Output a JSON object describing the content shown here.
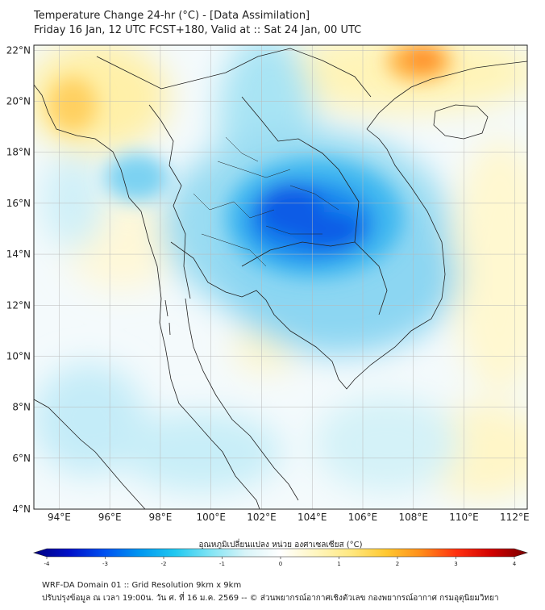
{
  "header": {
    "title_line1": "Temperature Change 24-hr (°C) - [Data Assimilation]",
    "title_line2": "Friday 16 Jan, 12 UTC FCST+180, Valid at :: Sat 24 Jan, 00 UTC"
  },
  "map": {
    "lat_labels": [
      "22°N",
      "20°N",
      "18°N",
      "16°N",
      "14°N",
      "12°N",
      "10°N",
      "8°N",
      "6°N",
      "4°N"
    ],
    "lon_labels": [
      "94°E",
      "96°E",
      "98°E",
      "100°E",
      "102°E",
      "104°E",
      "106°E",
      "108°E",
      "110°E",
      "112°E"
    ],
    "lat_values": [
      22,
      20,
      18,
      16,
      14,
      12,
      10,
      8,
      6,
      4
    ],
    "lon_values": [
      94,
      96,
      98,
      100,
      102,
      104,
      106,
      108,
      110,
      112
    ],
    "extent": {
      "lon_min": 93,
      "lon_max": 112.5,
      "lat_min": 4,
      "lat_max": 22.2
    },
    "grid": true
  },
  "colorbar": {
    "label": "อุณหภูมิเปลี่ยนแปลง หน่วย องศาเซลเซียส (°C)",
    "tick_labels": [
      "-4",
      "-3",
      "-2",
      "-1",
      "0",
      "1",
      "2",
      "3",
      "4"
    ],
    "range": [
      -4,
      4
    ],
    "colors": [
      "#000080",
      "#0010c8",
      "#0050f0",
      "#0096f0",
      "#20c8f0",
      "#80e4f4",
      "#d8f4f8",
      "#ffffff",
      "#fff6c0",
      "#ffe880",
      "#ffc830",
      "#ff8c1a",
      "#ff3010",
      "#d00000",
      "#7a0000"
    ]
  },
  "footer": {
    "line1": "WRF-DA Domain 01 :: Grid Resolution 9km x 9km",
    "line2": "ปรับปรุงข้อมูล ณ เวลา 19:00น. วัน ศ. ที่ 16 ม.ค. 2569 -- © ส่วนพยากรณ์อากาศเชิงตัวเลข กองพยากรณ์อากาศ กรมอุตุนิยมวิทยา"
  }
}
